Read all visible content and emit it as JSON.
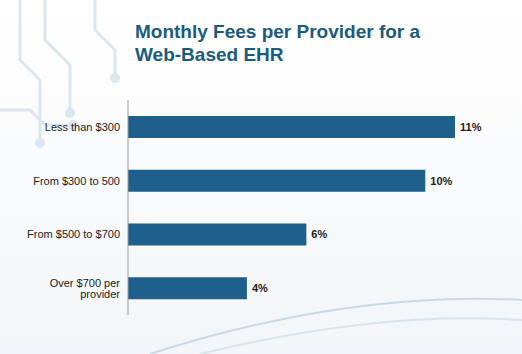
{
  "chart_data": {
    "type": "bar",
    "title": "Monthly Fees per Provider for a Web-Based EHR",
    "categories": [
      "Less than $300",
      "From $300 to 500",
      "From $500 to $700",
      "Over $700 per provider"
    ],
    "values": [
      11,
      10,
      6,
      4
    ],
    "value_labels": [
      "11%",
      "10%",
      "6%",
      "4%"
    ],
    "color": "#1f5f8b",
    "orientation": "horizontal",
    "data_labels": true,
    "tick_labels": "y",
    "grid": false
  }
}
